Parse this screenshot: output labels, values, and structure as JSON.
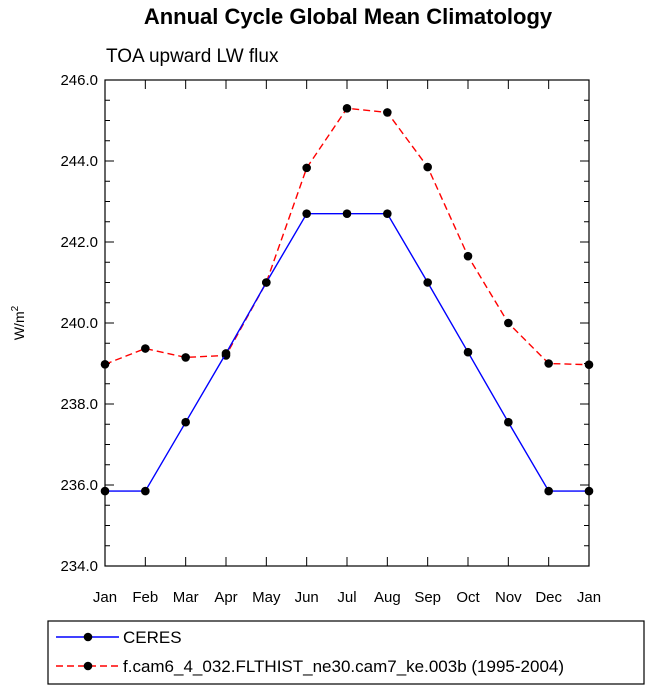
{
  "chart_data": {
    "type": "line",
    "title": "Annual Cycle Global Mean Climatology",
    "subtitle": "TOA upward LW flux",
    "ylabel": "W/m",
    "ylabel_sup": "2",
    "categories": [
      "Jan",
      "Feb",
      "Mar",
      "Apr",
      "May",
      "Jun",
      "Jul",
      "Aug",
      "Sep",
      "Oct",
      "Nov",
      "Dec",
      "Jan"
    ],
    "ylim": [
      234.0,
      246.0
    ],
    "yticks": [
      "234.0",
      "236.0",
      "238.0",
      "240.0",
      "242.0",
      "244.0",
      "246.0"
    ],
    "series": [
      {
        "name": "CERES",
        "color": "#0000ff",
        "style": "solid",
        "values": [
          235.85,
          235.85,
          237.55,
          239.25,
          241.0,
          242.7,
          242.7,
          242.7,
          241.0,
          239.28,
          237.55,
          235.85,
          235.85
        ]
      },
      {
        "name": "f.cam6_4_032.FLTHIST_ne30.cam7_ke.003b (1995-2004)",
        "color": "#ff0000",
        "style": "dashed",
        "values": [
          238.98,
          239.37,
          239.15,
          239.2,
          241.0,
          243.83,
          245.3,
          245.2,
          243.85,
          241.65,
          240.0,
          239.0,
          238.97
        ]
      }
    ],
    "legend": "bottom",
    "grid": false
  }
}
